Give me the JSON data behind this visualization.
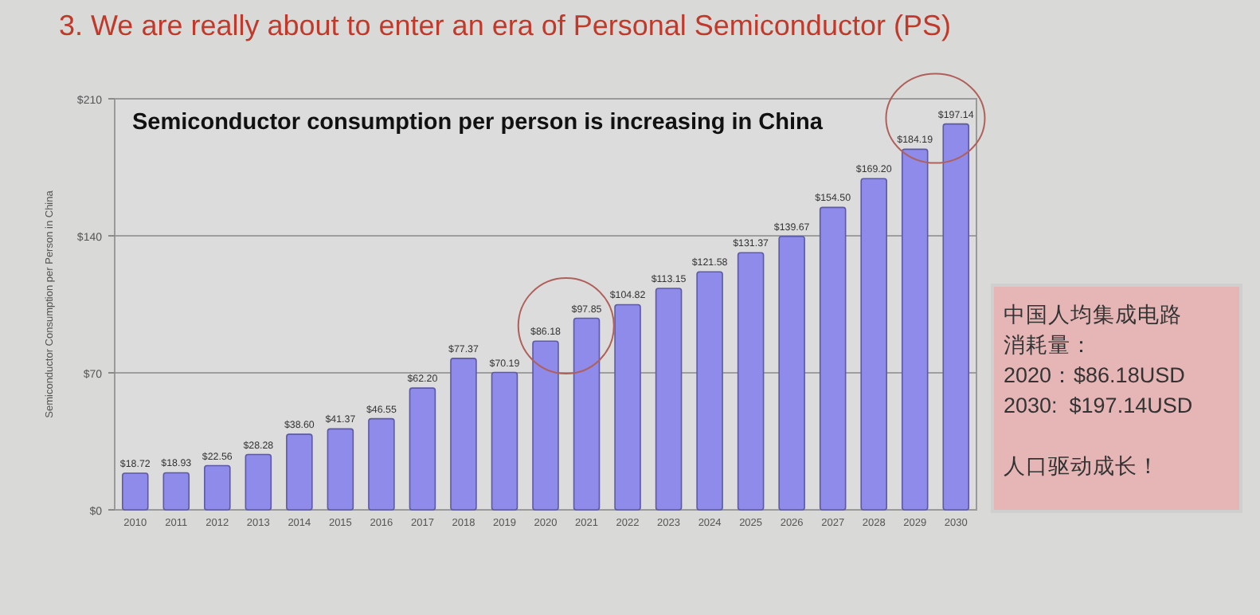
{
  "chart_data": {
    "type": "bar",
    "title": "3. We are really about to enter an era of Personal Semiconductor (PS)",
    "subtitle": "Semiconductor consumption per person is increasing in China",
    "ylabel": "Semiconductor Consumption per Person in China",
    "categories": [
      "2010",
      "2011",
      "2012",
      "2013",
      "2014",
      "2015",
      "2016",
      "2017",
      "2018",
      "2019",
      "2020",
      "2021",
      "2022",
      "2023",
      "2024",
      "2025",
      "2026",
      "2027",
      "2028",
      "2029",
      "2030"
    ],
    "values": [
      18.72,
      18.93,
      22.56,
      28.28,
      38.6,
      41.37,
      46.55,
      62.2,
      77.37,
      70.19,
      86.18,
      97.85,
      104.82,
      113.15,
      121.58,
      131.37,
      139.67,
      154.5,
      169.2,
      184.19,
      197.14
    ],
    "value_labels": [
      "$18.72",
      "$18.93",
      "$22.56",
      "$28.28",
      "$38.60",
      "$41.37",
      "$46.55",
      "$62.20",
      "$77.37",
      "$70.19",
      "$86.18",
      "$97.85",
      "$104.82",
      "$113.15",
      "$121.58",
      "$131.37",
      "$139.67",
      "$154.50",
      "$169.20",
      "$184.19",
      "$197.14"
    ],
    "color": "#8f8bea",
    "ylim": [
      0,
      210
    ],
    "yticks": [
      {
        "value": 0,
        "label": "$0"
      },
      {
        "value": 70,
        "label": "$70"
      },
      {
        "value": 140,
        "label": "$140"
      },
      {
        "value": 210,
        "label": "$210"
      }
    ],
    "grid": "y",
    "annotations": [
      "中国人均集成电路消耗量：",
      "2020：$86.18USD",
      "2030:  $197.14USD",
      "人口驱动成长！"
    ]
  }
}
